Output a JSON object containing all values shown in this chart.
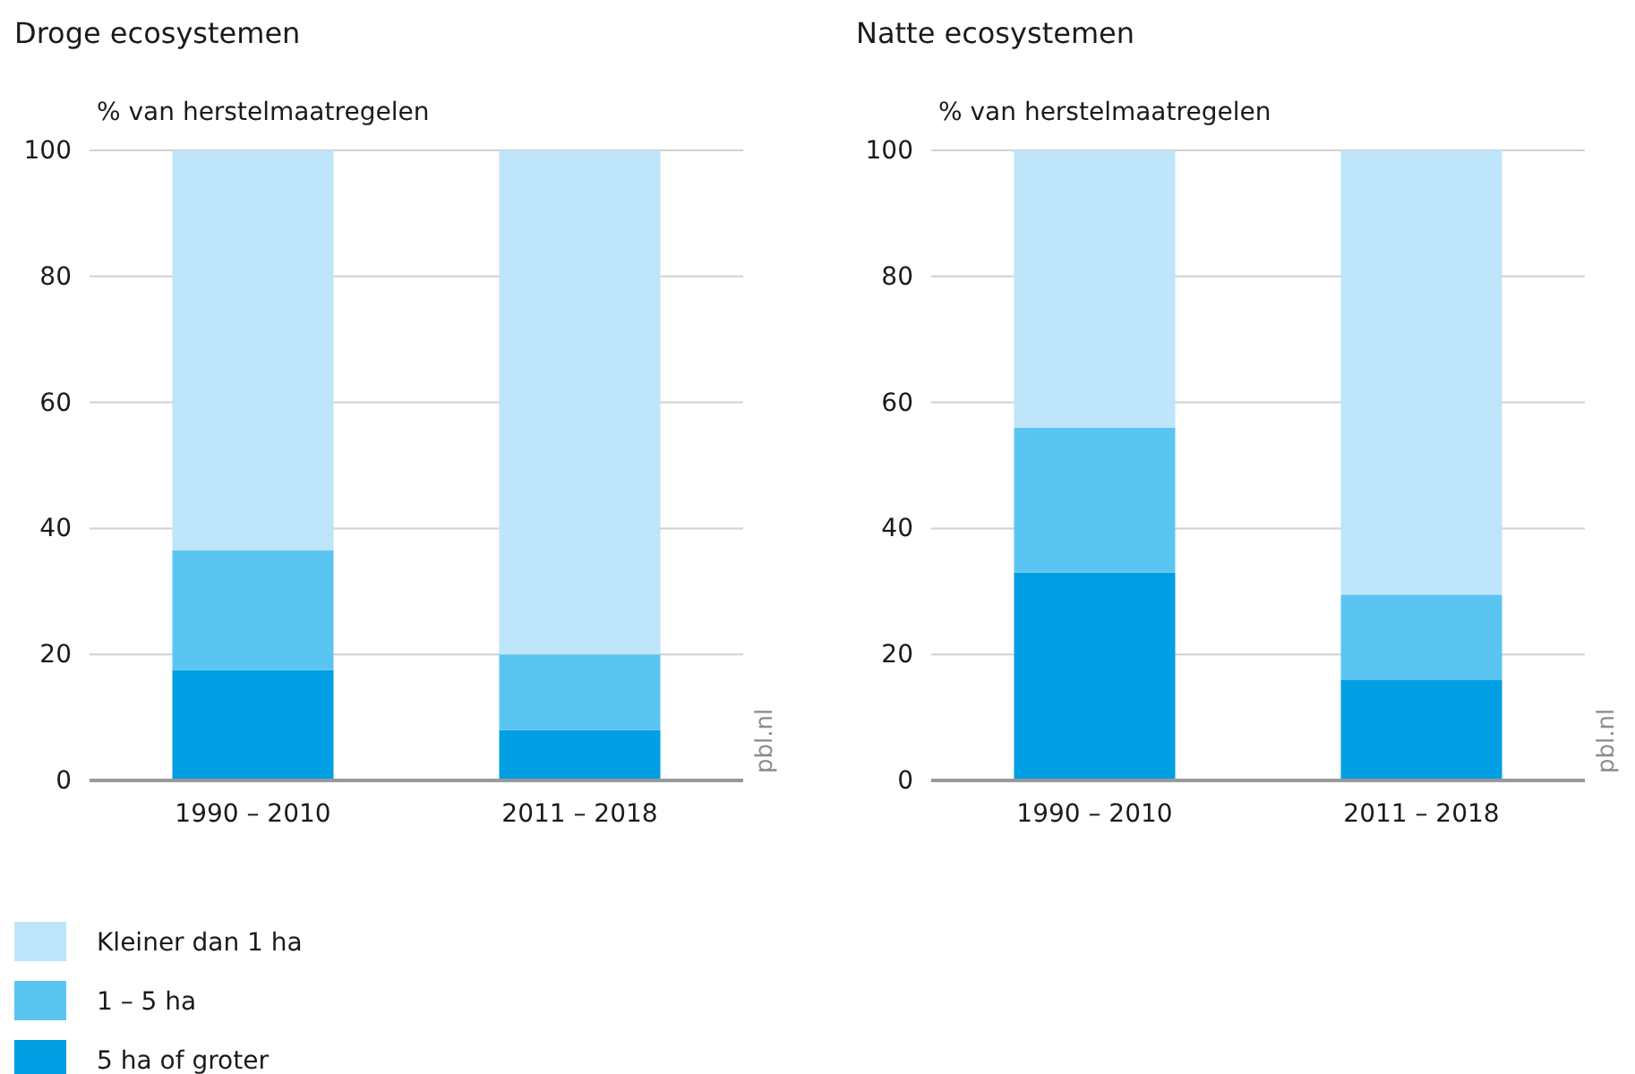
{
  "chart_data": [
    {
      "type": "bar",
      "title": "Droge ecosystemen",
      "ylabel": "% van herstelmaatregelen",
      "categories": [
        "1990 – 2010",
        "2011 – 2018"
      ],
      "stacked": true,
      "ylim": [
        0,
        100
      ],
      "yticks": [
        0,
        20,
        40,
        60,
        80,
        100
      ],
      "grid": "y",
      "legend": "bottom",
      "annotations": [
        "pbl.nl"
      ],
      "series": [
        {
          "name": "5 ha of groter",
          "color": "#009fe3",
          "values": [
            17.5,
            8
          ]
        },
        {
          "name": "1 – 5 ha",
          "color": "#5bc5f2",
          "values": [
            19,
            12
          ]
        },
        {
          "name": "Kleiner dan 1 ha",
          "color": "#bee5fa",
          "values": [
            63.5,
            80
          ]
        }
      ]
    },
    {
      "type": "bar",
      "title": "Natte ecosystemen",
      "ylabel": "% van herstelmaatregelen",
      "categories": [
        "1990 – 2010",
        "2011 – 2018"
      ],
      "stacked": true,
      "ylim": [
        0,
        100
      ],
      "yticks": [
        0,
        20,
        40,
        60,
        80,
        100
      ],
      "grid": "y",
      "annotations": [
        "pbl.nl"
      ],
      "series": [
        {
          "color": "#009fe3",
          "values": [
            33,
            16
          ]
        },
        {
          "color": "#5bc5f2",
          "values": [
            23,
            13.5
          ]
        },
        {
          "color": "#bee5fa",
          "values": [
            44,
            70.5
          ]
        }
      ]
    }
  ]
}
